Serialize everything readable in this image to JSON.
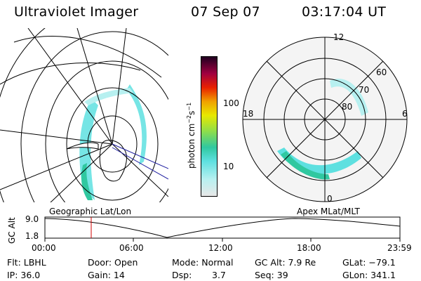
{
  "header": {
    "instrument": "Ultraviolet Imager",
    "date": "07 Sep 07",
    "time": "03:17:04 UT"
  },
  "left_panel": {
    "label": "Geographic Lat/Lon"
  },
  "right_panel": {
    "label": "Apex MLat/MLT",
    "mlt_labels": {
      "top": "12",
      "left": "18",
      "right": "6",
      "bottom": "0"
    },
    "mlat_labels": [
      "60",
      "70",
      "80"
    ]
  },
  "colorbar": {
    "unit_label": "photon cm",
    "unit_sup1": "−2",
    "unit_mid": "s",
    "unit_sup2": "−1",
    "ticks": [
      "100",
      "10"
    ],
    "scale": "log",
    "colors": [
      "#e8e8e8",
      "#b7f0f0",
      "#5ee0e0",
      "#30c8a0",
      "#9ae040",
      "#e8e800",
      "#f0a000",
      "#e82000",
      "#a00040",
      "#200020"
    ]
  },
  "timeline": {
    "ylabel": "GC Alt",
    "ytick_high": "9.0",
    "ytick_low": "1.8",
    "xticks": [
      "00:00",
      "06:00",
      "12:00",
      "18:00",
      "23:59"
    ],
    "marker_time": "03:17",
    "marker_color": "#d00000"
  },
  "info": {
    "filter": "Flt: LBHL",
    "door": "Door: Open",
    "mode": "Mode: Normal",
    "gc_alt": "GC Alt: 7.9 Re",
    "glat": "GLat: −79.1",
    "ip": "IP: 36.0",
    "gain": "Gain: 14",
    "dsp_label": "Dsp:",
    "dsp_value": "3.7",
    "seq": "Seq: 39",
    "glon": "GLon: 341.1"
  }
}
